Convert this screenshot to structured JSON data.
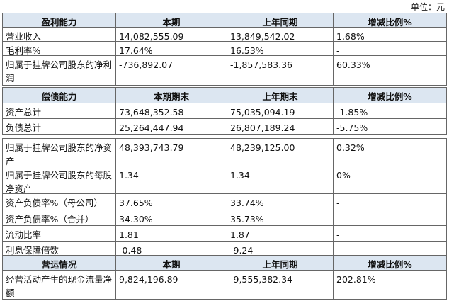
{
  "unit": "单位：元",
  "sections": [
    {
      "header": [
        "盈利能力",
        "本期",
        "上年同期",
        "增减比例%"
      ],
      "rows": [
        [
          "营业收入",
          "14,082,555.09",
          "13,849,542.02",
          "1.68%"
        ],
        [
          "毛利率%",
          "17.64%",
          "16.53%",
          "-"
        ],
        [
          "归属于挂牌公司股东的净利润",
          "-736,892.07",
          "-1,857,583.36",
          "60.33%"
        ]
      ]
    },
    {
      "header": [
        "偿债能力",
        "本期期末",
        "上年期末",
        "增减比例%"
      ],
      "rows": [
        [
          "资产总计",
          "73,648,352.58",
          "75,035,094.19",
          "-1.85%"
        ],
        [
          "负债总计",
          "25,264,447.94",
          "26,807,189.24",
          "-5.75%"
        ]
      ]
    },
    {
      "rows": [
        [
          "归属于挂牌公司股东的净资产",
          "48,393,743.79",
          "48,239,125.00",
          "0.32%"
        ],
        [
          "归属于挂牌公司股东的每股净资产",
          "1.34",
          "1.34",
          "0%"
        ],
        [
          "资产负债率%（母公司）",
          "37.65%",
          "33.74%",
          "-"
        ],
        [
          "资产负债率%（合并）",
          "34.30%",
          "35.73%",
          "-"
        ],
        [
          "流动比率",
          "1.81",
          "1.87",
          "-"
        ],
        [
          "利息保障倍数",
          "-0.48",
          "-9.24",
          "-"
        ]
      ]
    },
    {
      "header": [
        "营运情况",
        "本期",
        "上年同期",
        "增减比例%"
      ],
      "rows": [
        [
          "经营活动产生的现金流量净额",
          "9,824,196.89",
          "-9,555,382.34",
          "202.81%"
        ]
      ]
    }
  ]
}
